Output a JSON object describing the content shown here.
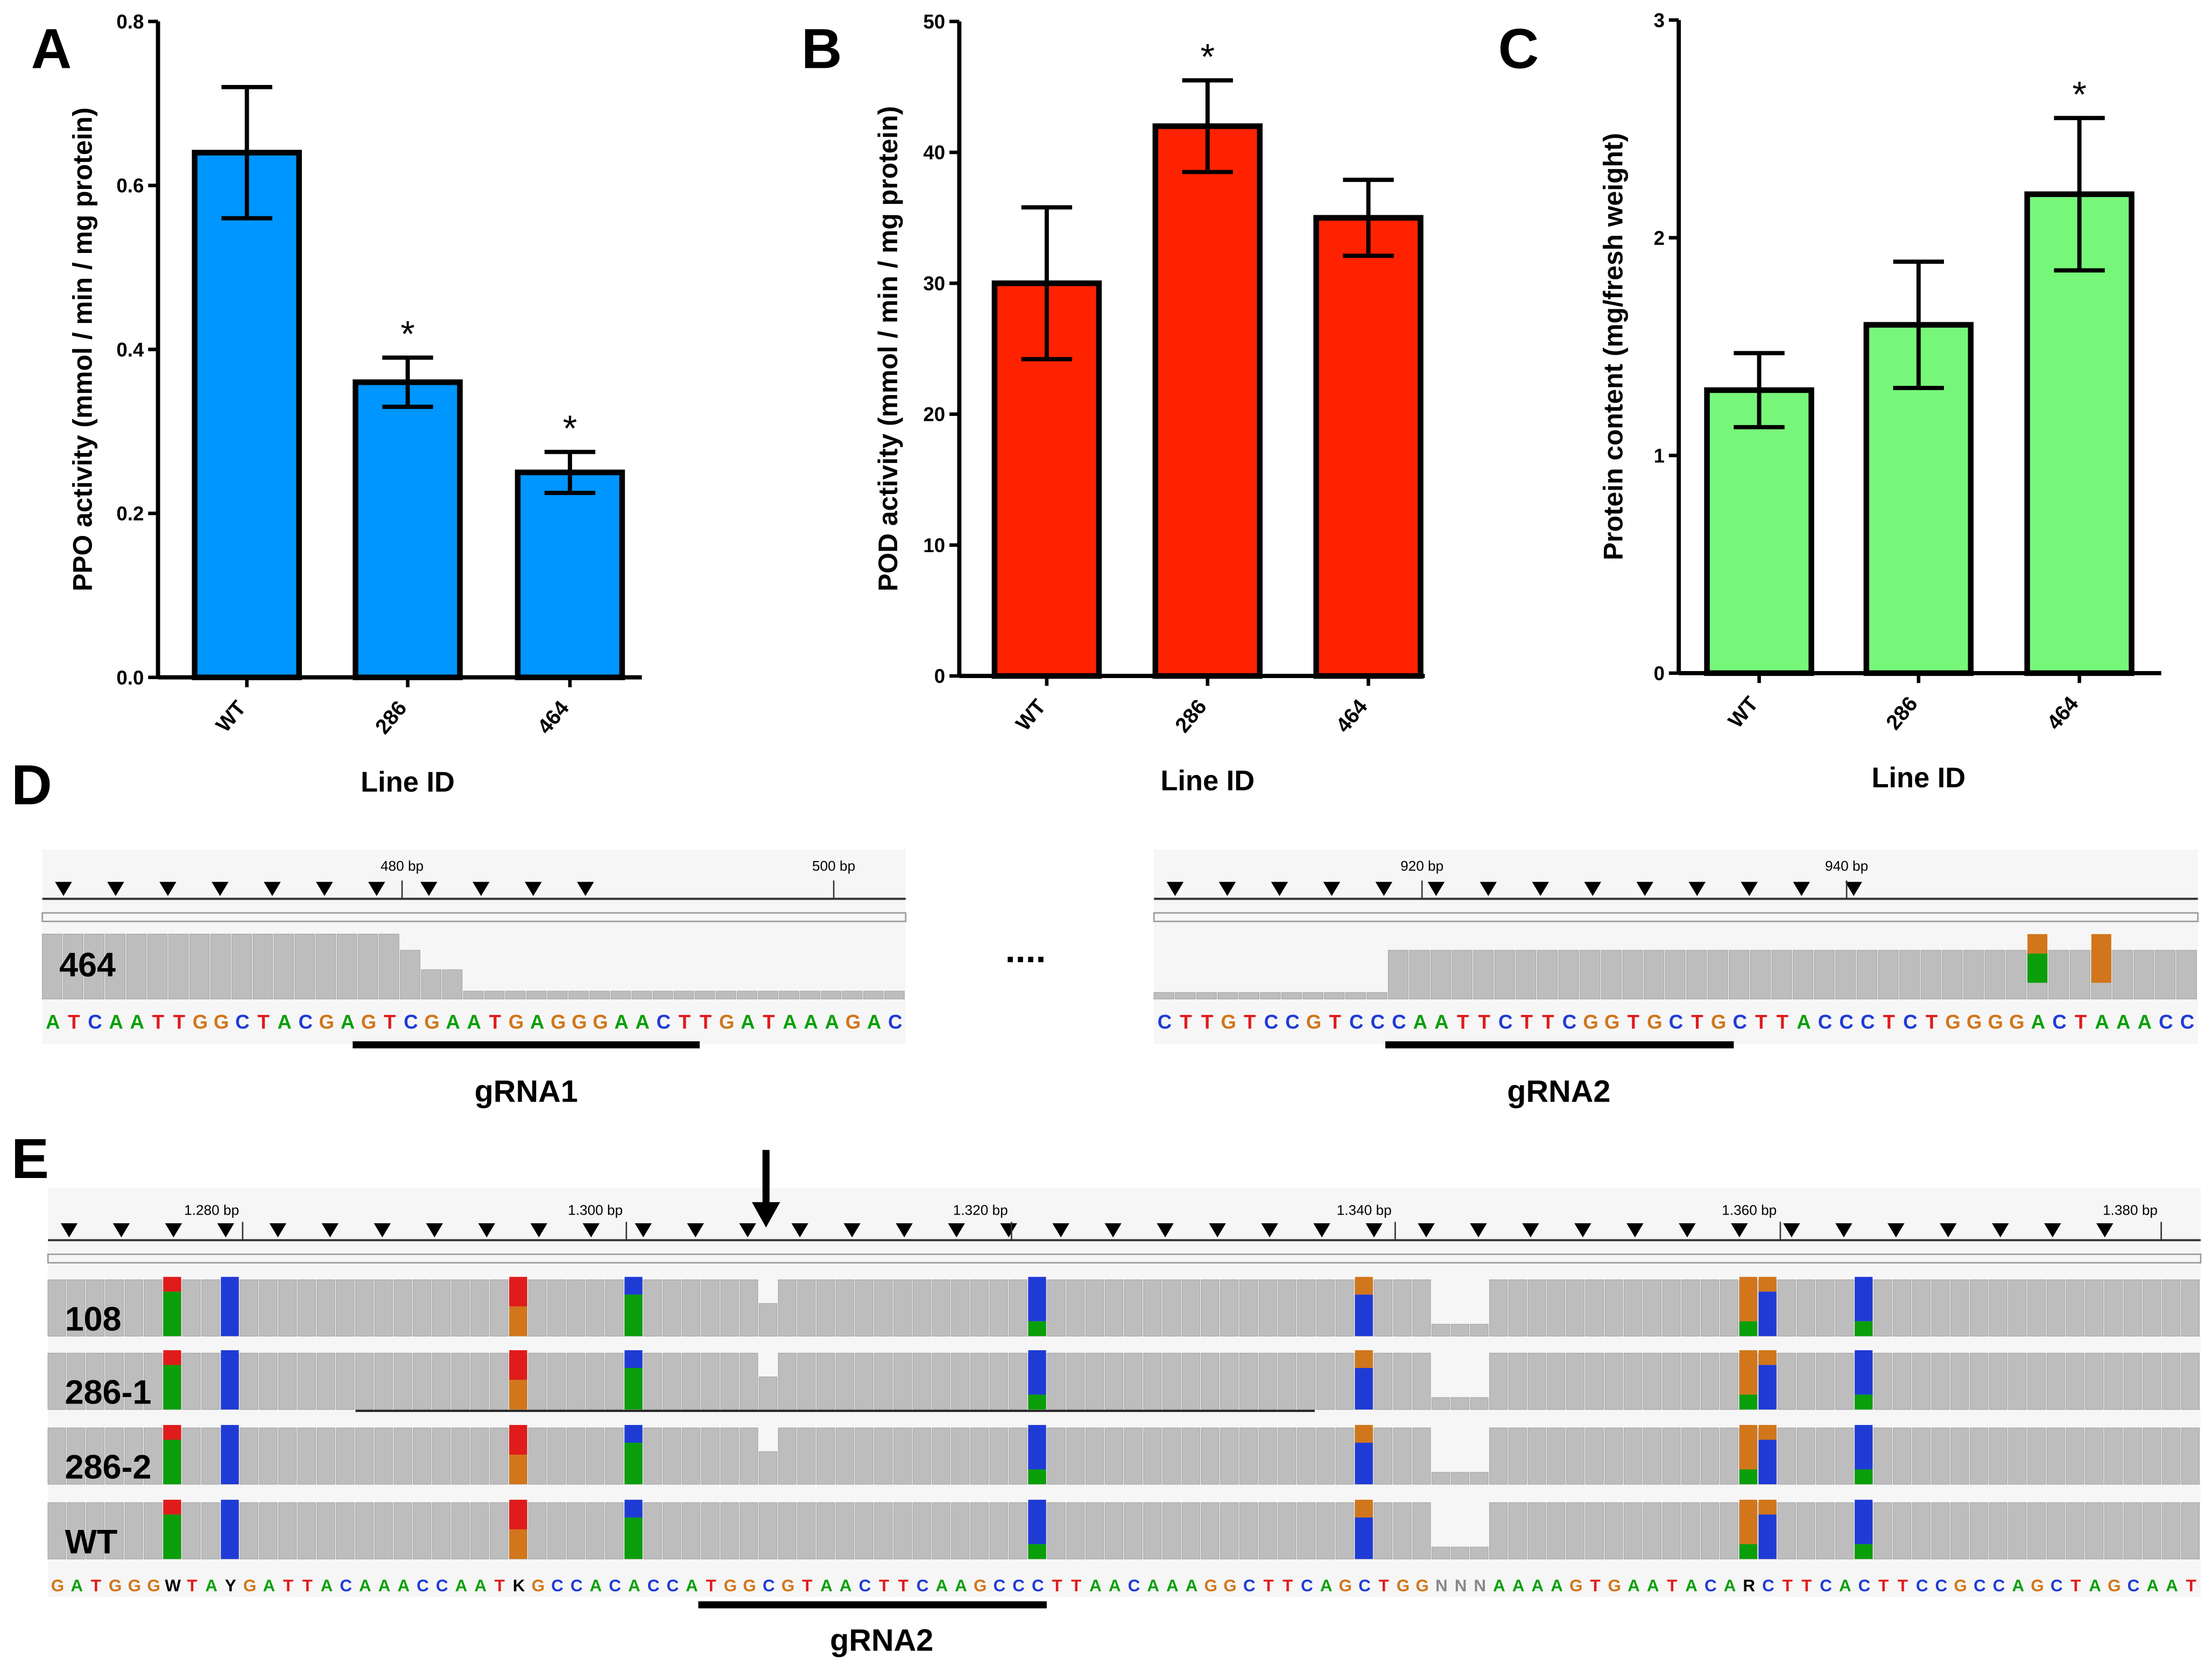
{
  "chart_data": [
    {
      "type": "bar",
      "panel": "A",
      "ylabel": "PPO activity (mmol / min / mg protein)",
      "xlabel": "Line ID",
      "categories": [
        "WT",
        "286",
        "464"
      ],
      "values": [
        0.64,
        0.36,
        0.25
      ],
      "errors": [
        0.08,
        0.03,
        0.025
      ],
      "annotations": [
        null,
        "*",
        "*"
      ],
      "color": "#0096ff",
      "ylim": [
        0,
        0.8
      ],
      "yticks": [
        {
          "value": 0,
          "label": "0.0"
        },
        0.2,
        0.4,
        0.6,
        0.8
      ]
    },
    {
      "type": "bar",
      "panel": "B",
      "ylabel": "POD activity (mmol / min / mg protein)",
      "xlabel": "Line ID",
      "categories": [
        "WT",
        "286",
        "464"
      ],
      "values": [
        30,
        42,
        35
      ],
      "errors": [
        5.8,
        3.5,
        2.9
      ],
      "annotations": [
        null,
        "*",
        null
      ],
      "color": "#ff2200",
      "ylim": [
        0,
        50
      ],
      "yticks": [
        0,
        10,
        20,
        30,
        40,
        50
      ]
    },
    {
      "type": "bar",
      "panel": "C",
      "ylabel": "Protein content (mg/fresh weight)",
      "xlabel": "Line ID",
      "categories": [
        "WT",
        "286",
        "464"
      ],
      "values": [
        1.3,
        1.6,
        2.2
      ],
      "errors": [
        0.17,
        0.29,
        0.35
      ],
      "annotations": [
        null,
        null,
        "*"
      ],
      "color": "#77f77a",
      "ylim": [
        0,
        3
      ],
      "yticks": [
        0,
        1,
        2,
        3
      ]
    }
  ],
  "panel_d": {
    "label": "D",
    "gap": "....",
    "left": {
      "ticks": [
        "480 bp",
        "500 bp"
      ],
      "sample": "464",
      "sequence": "ATCAATTGGCTACGAGTCGAATGAGGGAACTTGATAAAGAC",
      "grna": "gRNA1"
    },
    "right": {
      "ticks": [
        "920 bp",
        "940 bp"
      ],
      "sequence": "CTTGTCCGTCCCAATTCTTCGGTGCTGCTTACCCTCTGGGGACTAAACC",
      "grna": "gRNA2"
    }
  },
  "panel_e": {
    "label": "E",
    "ticks": [
      "1.280 bp",
      "1.300 bp",
      "1.320 bp",
      "1.340 bp",
      "1.360 bp",
      "1.380 bp"
    ],
    "samples": [
      "108",
      "286-1",
      "286-2",
      "WT"
    ],
    "sequence": "GATGGGWTAYGATTACAAACCAATKGCCACACCATGGCGTAACTTCAAGCCCTTAACAAAGGCTTCAGCTGGNNNAAAAGTGAATACARCTTCACTTCCGCCAGCTAGCAAT",
    "grna": "gRNA2"
  }
}
